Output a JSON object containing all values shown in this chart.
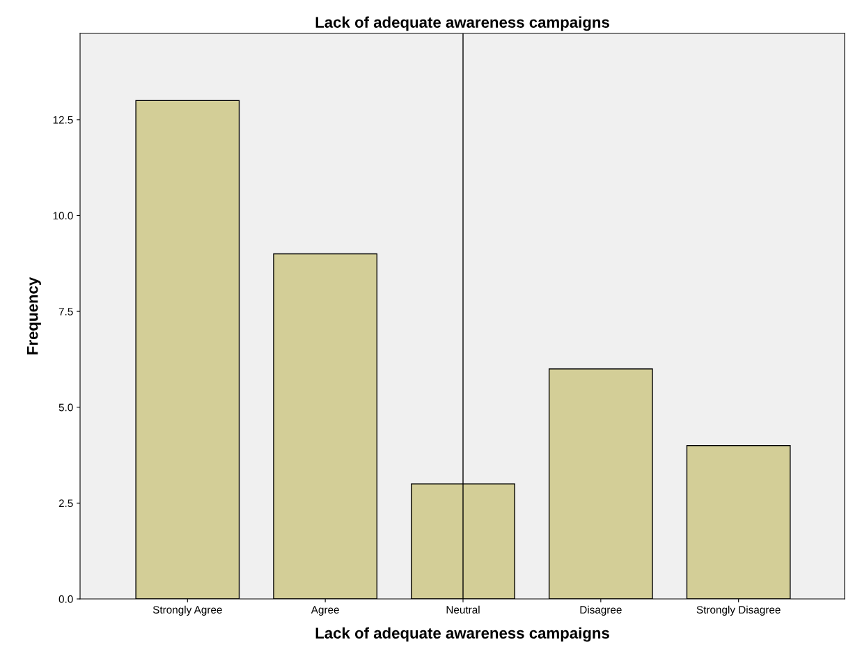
{
  "chart_data": {
    "type": "bar",
    "title": "Lack of adequate awareness campaigns",
    "xlabel": "Lack of adequate awareness campaigns",
    "ylabel": "Frequency",
    "categories": [
      "Strongly Agree",
      "Agree",
      "Neutral",
      "Disagree",
      "Strongly Disagree"
    ],
    "values": [
      13,
      9,
      3,
      6,
      4
    ],
    "color": "#d3ce97",
    "ylim": [
      0,
      14.75
    ],
    "yticks": [
      {
        "value": 0,
        "label": "0.0"
      },
      {
        "value": 2.5,
        "label": "2.5"
      },
      {
        "value": 5,
        "label": "5.0"
      },
      {
        "value": 7.5,
        "label": "7.5"
      },
      {
        "value": 10,
        "label": "10.0"
      },
      {
        "value": 12.5,
        "label": "12.5"
      }
    ],
    "ref_lines": [
      {
        "axis": "x",
        "value": "Neutral",
        "color": "#000000"
      }
    ],
    "grid": false
  }
}
